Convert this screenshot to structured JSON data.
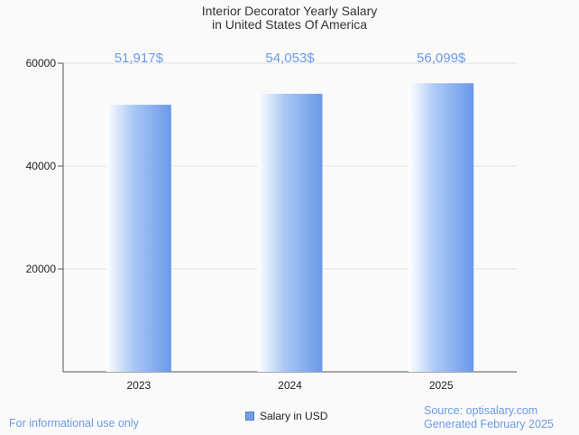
{
  "chart_data": {
    "type": "bar",
    "title": [
      "Interior Decorator Yearly Salary",
      "in United States Of America"
    ],
    "categories": [
      "2023",
      "2024",
      "2025"
    ],
    "series": [
      {
        "name": "Salary in USD",
        "values": [
          51917,
          54053,
          56099
        ]
      }
    ],
    "value_labels": [
      "51,917$",
      "54,053$",
      "56,099$"
    ],
    "y_ticks": [
      "20000",
      "40000",
      "60000"
    ],
    "y_tick_values": [
      20000,
      40000,
      60000
    ],
    "ylim": [
      0,
      60000
    ],
    "grid": true,
    "legend_position": "bottom"
  },
  "colors": {
    "bar_light": "#ffffff",
    "bar_mid": "#a9c8f5",
    "bar_dark": "#6b98ea",
    "label": "#6b9ae8",
    "grid": "#e2e2e2"
  },
  "footer": {
    "disclaimer": "For informational use only",
    "source": "Source: optisalary.com",
    "generated": "Generated February 2025"
  }
}
